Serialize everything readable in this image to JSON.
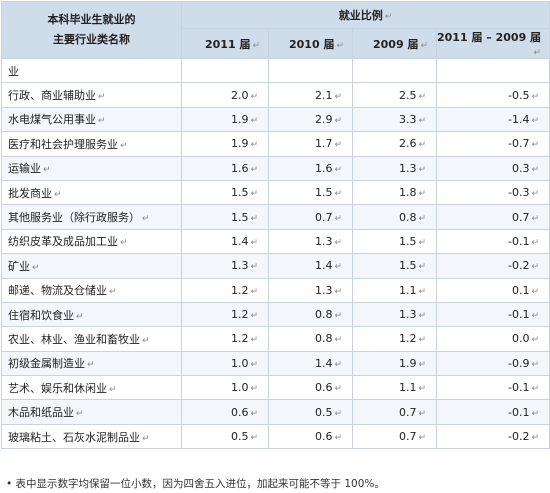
{
  "header": {
    "industry_title_line1": "本科毕业生就业的",
    "industry_title_line2": "主要行业类名称",
    "ratio_title": "就业比例",
    "col_2011": "2011 届",
    "col_2010": "2010 届",
    "col_2009": "2009 届",
    "col_diff": "2011 届 – 2009 届"
  },
  "group_label": "业",
  "rows": [
    {
      "name": "行政、商业辅助业",
      "v2011": "2.0",
      "v2010": "2.1",
      "v2009": "2.5",
      "diff": "-0.5"
    },
    {
      "name": "水电煤气公用事业",
      "v2011": "1.9",
      "v2010": "2.9",
      "v2009": "3.3",
      "diff": "-1.4"
    },
    {
      "name": "医疗和社会护理服务业",
      "v2011": "1.9",
      "v2010": "1.7",
      "v2009": "2.6",
      "diff": "-0.7"
    },
    {
      "name": "运输业",
      "v2011": "1.6",
      "v2010": "1.6",
      "v2009": "1.3",
      "diff": "0.3"
    },
    {
      "name": "批发商业",
      "v2011": "1.5",
      "v2010": "1.5",
      "v2009": "1.8",
      "diff": "-0.3"
    },
    {
      "name": "其他服务业（除行政服务）",
      "v2011": "1.5",
      "v2010": "0.7",
      "v2009": "0.8",
      "diff": "0.7"
    },
    {
      "name": "纺织皮革及成品加工业",
      "v2011": "1.4",
      "v2010": "1.3",
      "v2009": "1.5",
      "diff": "-0.1"
    },
    {
      "name": "矿业",
      "v2011": "1.3",
      "v2010": "1.4",
      "v2009": "1.5",
      "diff": "-0.2"
    },
    {
      "name": "邮递、物流及仓储业",
      "v2011": "1.2",
      "v2010": "1.3",
      "v2009": "1.1",
      "diff": "0.1"
    },
    {
      "name": "住宿和饮食业",
      "v2011": "1.2",
      "v2010": "0.8",
      "v2009": "1.3",
      "diff": "-0.1"
    },
    {
      "name": "农业、林业、渔业和畜牧业",
      "v2011": "1.2",
      "v2010": "0.8",
      "v2009": "1.2",
      "diff": "0.0"
    },
    {
      "name": "初级金属制造业",
      "v2011": "1.0",
      "v2010": "1.4",
      "v2009": "1.9",
      "diff": "-0.9"
    },
    {
      "name": "艺术、娱乐和休闲业",
      "v2011": "1.0",
      "v2010": "0.6",
      "v2009": "1.1",
      "diff": "-0.1"
    },
    {
      "name": "木品和纸品业",
      "v2011": "0.6",
      "v2010": "0.5",
      "v2009": "0.7",
      "diff": "-0.1"
    },
    {
      "name": "玻璃粘土、石灰水泥制品业",
      "v2011": "0.5",
      "v2010": "0.6",
      "v2009": "0.7",
      "diff": "-0.2"
    }
  ],
  "footnote": "• 表中显示数字均保留一位小数，因为四舍五入进位，加起来可能不等于 100%。",
  "paragraph_mark": "↵"
}
